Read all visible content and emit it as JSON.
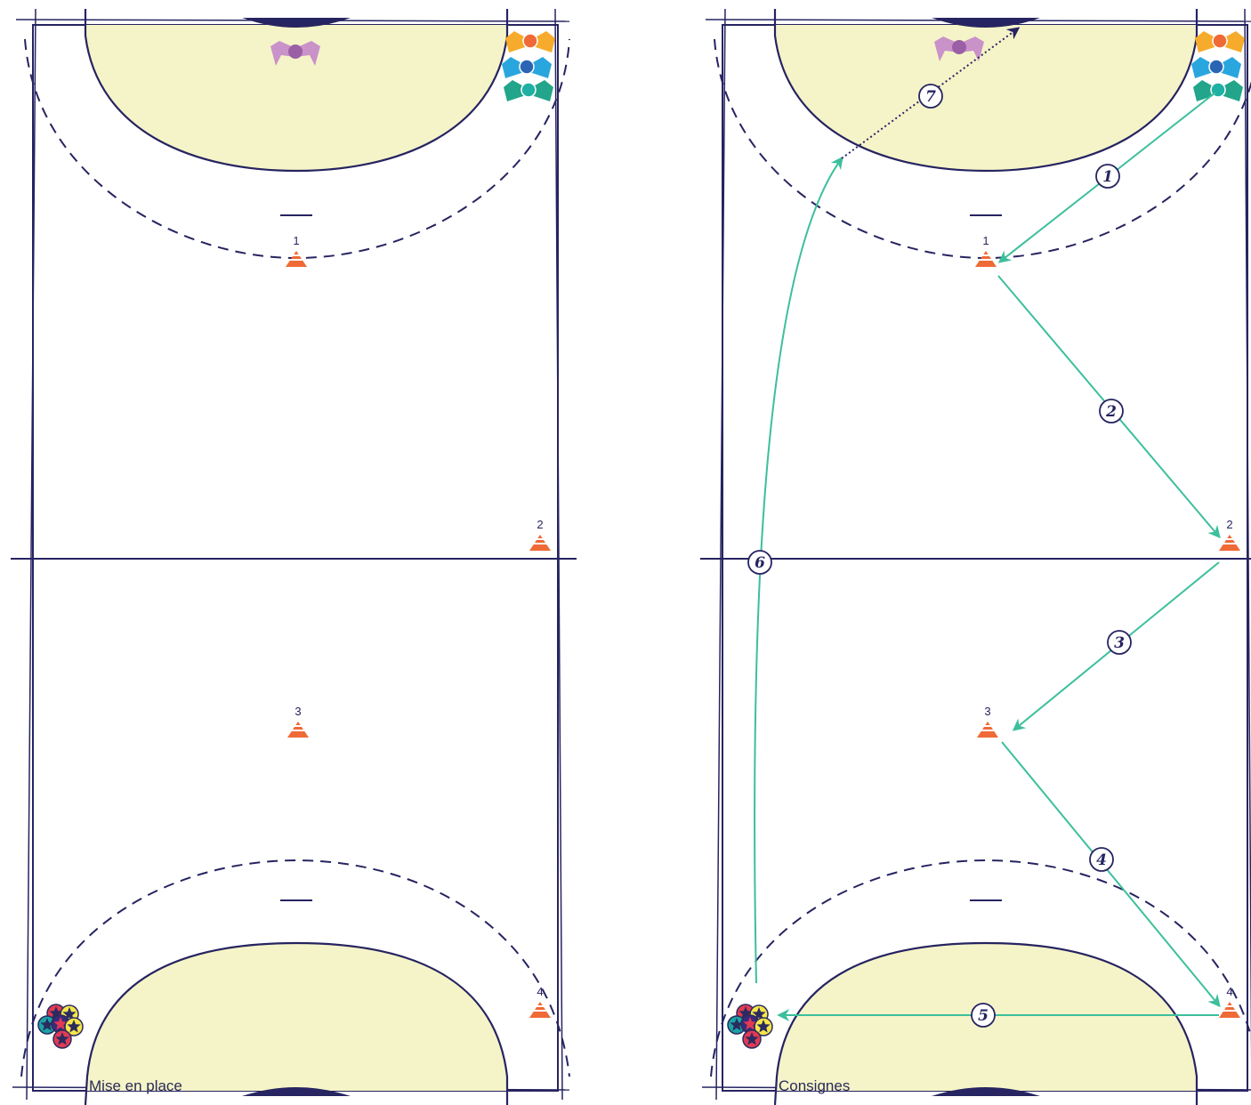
{
  "courts": [
    {
      "id": "left",
      "caption": "Mise en place",
      "cones": [
        "1",
        "2",
        "3",
        "4"
      ],
      "path_steps": []
    },
    {
      "id": "right",
      "caption": "Consignes",
      "cones": [
        "1",
        "2",
        "3",
        "4"
      ],
      "path_steps": [
        "1",
        "2",
        "3",
        "4",
        "5",
        "6",
        "7"
      ]
    }
  ],
  "colors": {
    "line": "#262461",
    "goal_area": "#f5f4c8",
    "cone": "#ef6a36",
    "path": "#3cbf9c",
    "shot": "#262461",
    "goalkeeper": "#c992c9",
    "player_orange": "#f6ab2c",
    "player_blue": "#2aa6df",
    "player_green": "#22a58a",
    "ball_yellow": "#f5e64a",
    "ball_red": "#e23a53",
    "ball_teal": "#1aa3a6"
  },
  "icons": [
    "cone-icon",
    "goalkeeper-icon",
    "attacker-icon",
    "ball-icon",
    "arrow-icon"
  ]
}
